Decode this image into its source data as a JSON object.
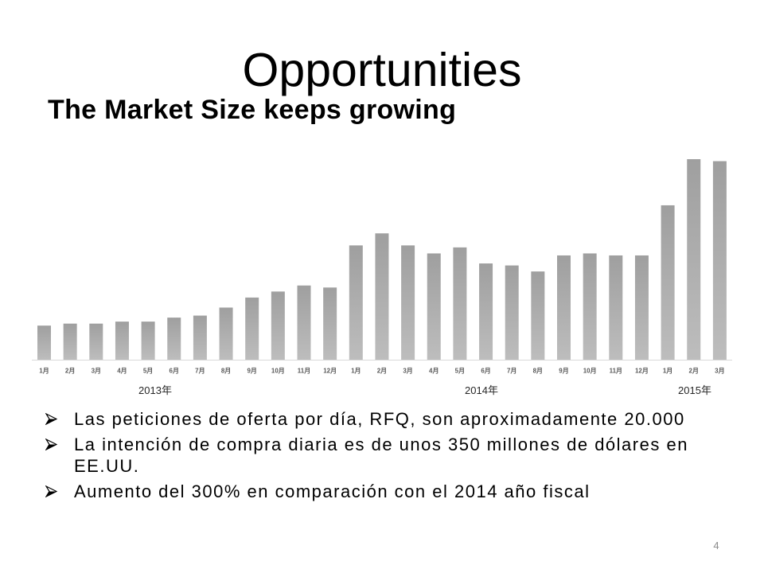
{
  "slide": {
    "title": "Opportunities",
    "subtitle": "The Market Size keeps growing",
    "bullets": [
      "Las peticiones de oferta por día, RFQ, son aproximadamente 20.000",
      "La intención de compra diaria es de unos 350 millones de dólares en EE.UU.",
      "Aumento del 300% en comparación con el 2014 año fiscal"
    ],
    "bullet_icon": "arrowhead-bullet-icon",
    "page_number": "4"
  },
  "colors": {
    "text": "#000000",
    "bar_gradient": [
      "#9f9f9f",
      "#bdbdbd"
    ],
    "axis_label": "#595959",
    "page_number": "#8c8c8c"
  },
  "chart_data": {
    "type": "bar",
    "categories": [
      "1月",
      "2月",
      "3月",
      "4月",
      "5月",
      "6月",
      "7月",
      "8月",
      "9月",
      "10月",
      "11月",
      "12月",
      "1月",
      "2月",
      "3月",
      "4月",
      "5月",
      "6月",
      "7月",
      "8月",
      "9月",
      "10月",
      "11月",
      "12月",
      "1月",
      "2月",
      "3月"
    ],
    "group_labels": [
      "2013年",
      "2014年",
      "2015年"
    ],
    "values": [
      17,
      18,
      18,
      19,
      19,
      21,
      22,
      26,
      31,
      34,
      37,
      36,
      57,
      63,
      57,
      53,
      56,
      48,
      47,
      44,
      52,
      53,
      52,
      52,
      77,
      100,
      99
    ],
    "y_axis_shown": false,
    "grid": false,
    "legend": "none"
  }
}
